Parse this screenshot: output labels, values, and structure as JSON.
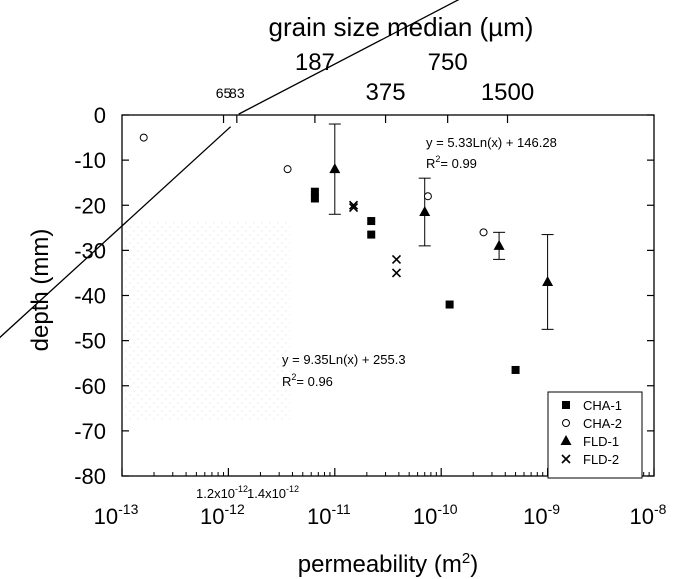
{
  "chart_data": {
    "type": "scatter",
    "x_scale": "log",
    "xlim": [
      1e-13,
      1e-08
    ],
    "ylim": [
      -80,
      0
    ],
    "xlabel": "permeability (m2)",
    "ylabel": "depth (mm)",
    "top_axis_title": "grain size median (µm)",
    "x_tick_labels": [
      "10-13",
      "10-12",
      "10-11",
      "10-10",
      "10-9",
      "10-8"
    ],
    "x_ticks": [
      {
        "value": 1e-13,
        "base": "10",
        "exp": "-13"
      },
      {
        "value": 1e-12,
        "base": "10",
        "exp": "-12"
      },
      {
        "value": 1e-11,
        "base": "10",
        "exp": "-11"
      },
      {
        "value": 1e-10,
        "base": "10",
        "exp": "-10"
      },
      {
        "value": 1e-09,
        "base": "10",
        "exp": "-9"
      },
      {
        "value": 1e-08,
        "base": "10",
        "exp": "-8"
      }
    ],
    "y_tick_labels": [
      "0",
      "-10",
      "-20",
      "-30",
      "-40",
      "-50",
      "-60",
      "-70",
      "-80"
    ],
    "y_ticks": [
      0,
      -10,
      -20,
      -30,
      -40,
      -50,
      -60,
      -70,
      -80
    ],
    "top_ticks": [
      {
        "label": "65",
        "value": 9e-13,
        "row": "small"
      },
      {
        "label": "83",
        "value": 1.2e-12,
        "row": "small"
      },
      {
        "label": "187",
        "value": 6.5e-12,
        "row": "upper"
      },
      {
        "label": "375",
        "value": 3e-11,
        "row": "lower"
      },
      {
        "label": "750",
        "value": 1.15e-10,
        "row": "upper"
      },
      {
        "label": "1500",
        "value": 4.2e-10,
        "row": "lower"
      }
    ],
    "annotations_bottom": [
      "1.2x10",
      "-12",
      "1.4x10",
      "-12"
    ],
    "series": [
      {
        "name": "CHA-1",
        "marker": "square",
        "points": [
          [
            6.5e-12,
            -17
          ],
          [
            6.5e-12,
            -18.5
          ],
          [
            2.2e-11,
            -23.5
          ],
          [
            2.2e-11,
            -26.5
          ],
          [
            1.2e-10,
            -42
          ],
          [
            5e-10,
            -56.5
          ]
        ]
      },
      {
        "name": "CHA-2",
        "marker": "circle",
        "points": [
          [
            1.6e-13,
            -5
          ],
          [
            3.6e-12,
            -12
          ],
          [
            7.5e-11,
            -18
          ],
          [
            2.5e-10,
            -26
          ]
        ]
      },
      {
        "name": "FLD-1",
        "marker": "triangle",
        "points": [
          [
            1e-11,
            -12
          ],
          [
            7e-11,
            -21.5
          ],
          [
            3.5e-10,
            -29
          ],
          [
            1e-09,
            -37
          ]
        ],
        "error_low": [
          -22,
          -29,
          -32,
          -47.5
        ],
        "error_high": [
          -2,
          -14,
          -26,
          -26.5
        ]
      },
      {
        "name": "FLD-2",
        "marker": "x",
        "points": [
          [
            1.5e-11,
            -20
          ],
          [
            1.5e-11,
            -20.5
          ],
          [
            3.8e-11,
            -32
          ],
          [
            3.8e-11,
            -35
          ]
        ]
      }
    ],
    "fits": [
      {
        "equation": "y = 5.33Ln(x) + 146.28",
        "r2": "R2= 0.99",
        "r2_prefix": "R",
        "r2_sup": "2",
        "r2_suffix": "= 0.99",
        "slope": 5.33,
        "intercept": 146.28
      },
      {
        "equation": "y = 9.35Ln(x) + 255.3",
        "r2": "R2= 0.96",
        "r2_prefix": "R",
        "r2_sup": "2",
        "r2_suffix": "= 0.96",
        "slope": 9.35,
        "intercept": 255.3
      }
    ],
    "legend": {
      "placement": "bottom-right",
      "entries": [
        "CHA-1",
        "CHA-2",
        "FLD-1",
        "FLD-2"
      ]
    }
  }
}
